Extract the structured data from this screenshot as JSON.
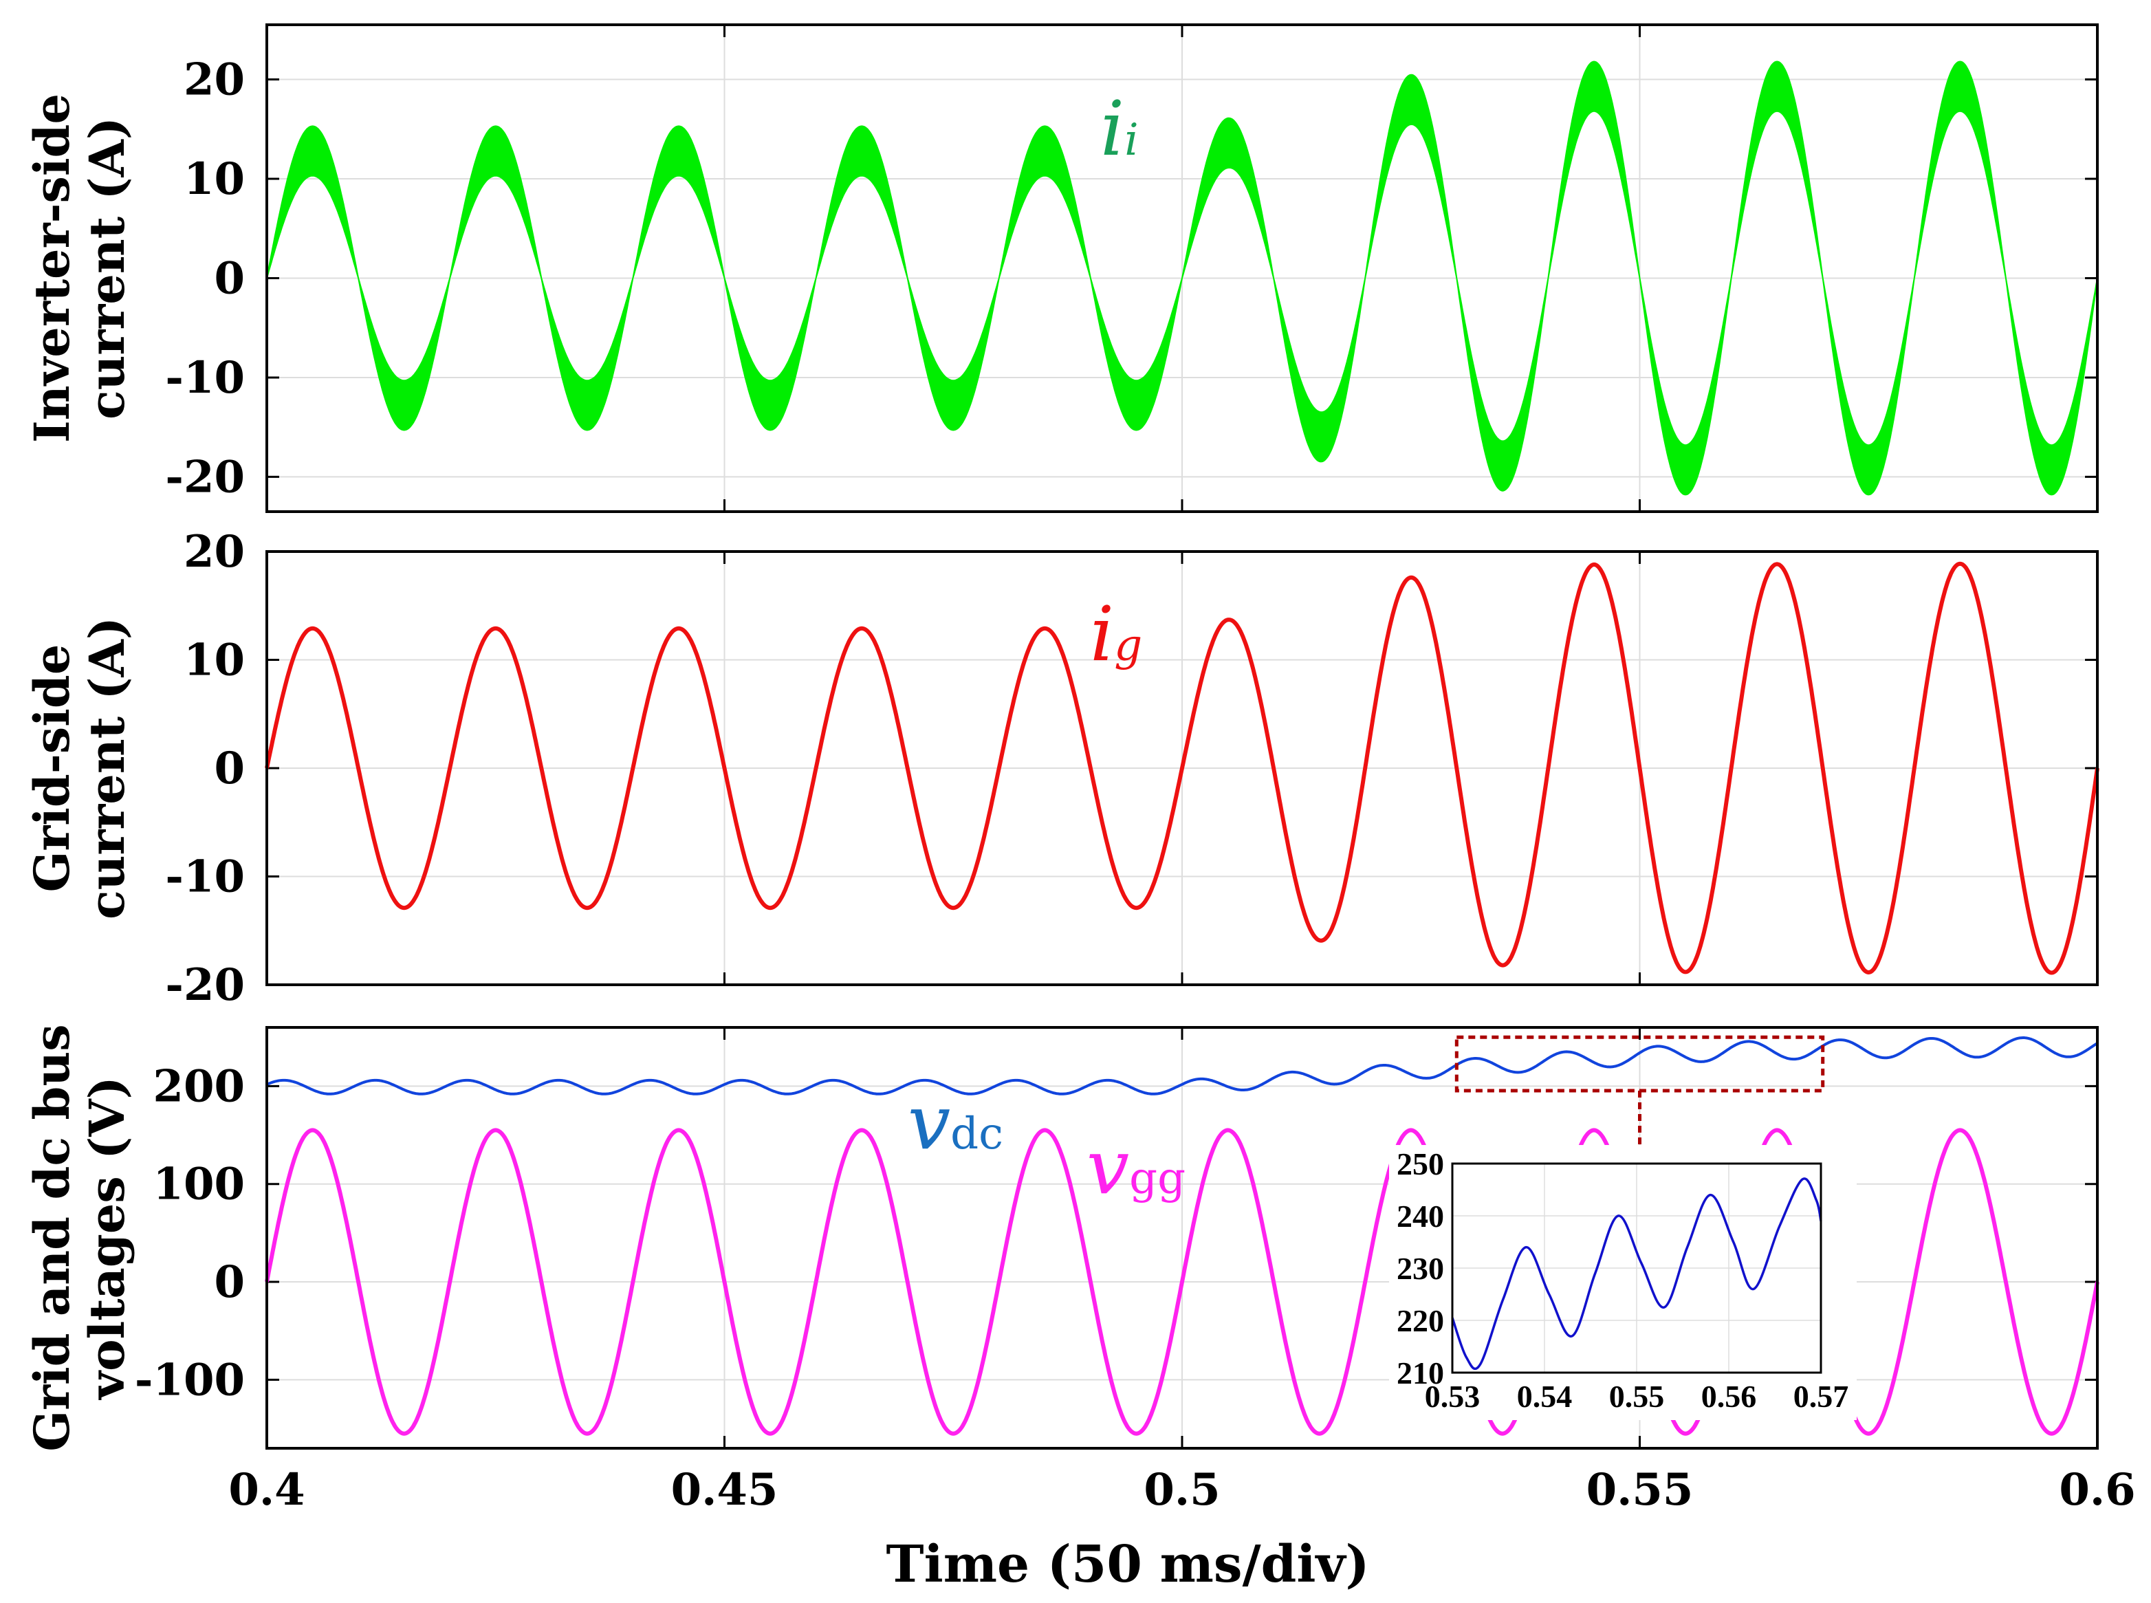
{
  "chart_data": [
    {
      "type": "line",
      "id": "inverter-current",
      "ylabel_lines": [
        "Inverter-side",
        "current (A)"
      ],
      "x_range": [
        0.4,
        0.6
      ],
      "ylim": [
        -23.5,
        25.5
      ],
      "yticks": [
        20,
        10,
        0,
        -10,
        -20
      ],
      "ytick_labels": [
        "20",
        "10",
        "0",
        "-10",
        "-20"
      ],
      "xticks": [
        0.4,
        0.45,
        0.5,
        0.55,
        0.6
      ],
      "grid": true,
      "frequency_hz": 50,
      "ripple_band_A": 2.5,
      "series": [
        {
          "name": "i_i",
          "label_main": "i",
          "label_sub": "i",
          "color": "#00ee00",
          "amplitude_envelope": [
            [
              0.4,
              12.8
            ],
            [
              0.5,
              12.8
            ],
            [
              0.51,
              14.4
            ],
            [
              0.52,
              17.5
            ],
            [
              0.535,
              18.9
            ],
            [
              0.545,
              19.3
            ],
            [
              0.6,
              19.3
            ]
          ]
        }
      ]
    },
    {
      "type": "line",
      "id": "grid-current",
      "ylabel_lines": [
        "Grid-side",
        "current (A)"
      ],
      "x_range": [
        0.4,
        0.6
      ],
      "ylim": [
        -20,
        20
      ],
      "yticks": [
        20,
        10,
        0,
        -10,
        -20
      ],
      "ytick_labels": [
        "20",
        "10",
        "0",
        "-10",
        "-20"
      ],
      "xticks": [
        0.4,
        0.45,
        0.5,
        0.55,
        0.6
      ],
      "grid": true,
      "frequency_hz": 50,
      "series": [
        {
          "name": "i_g",
          "label_main": "i",
          "label_sub": "g",
          "color": "#ee1111",
          "amplitude_envelope": [
            [
              0.4,
              12.9
            ],
            [
              0.5,
              12.9
            ],
            [
              0.51,
              14.5
            ],
            [
              0.52,
              17.3
            ],
            [
              0.535,
              18.2
            ],
            [
              0.545,
              18.8
            ],
            [
              0.6,
              18.9
            ]
          ]
        }
      ]
    },
    {
      "type": "line",
      "id": "voltages",
      "ylabel_lines": [
        "Grid and  dc bus",
        "voltages (V)"
      ],
      "x_range": [
        0.4,
        0.6
      ],
      "ylim": [
        -170,
        260
      ],
      "yticks": [
        200,
        100,
        0,
        -100
      ],
      "ytick_labels": [
        "200",
        "100",
        "0",
        "-100"
      ],
      "xticks": [
        0.4,
        0.45,
        0.5,
        0.55,
        0.6
      ],
      "xtick_labels": [
        "0.4",
        "0.45",
        "0.5",
        "0.55",
        "0.6"
      ],
      "xlabel": "Time (50 ms/div)",
      "grid": true,
      "series": [
        {
          "name": "v_gg",
          "label_main": "v",
          "label_sub": "gg",
          "color": "#ff22ee",
          "amplitude": 155,
          "frequency_hz": 50
        },
        {
          "name": "v_dc",
          "label_main": "v",
          "label_sub": "dc",
          "color": "#1144dd",
          "mean_envelope": [
            [
              0.4,
              199
            ],
            [
              0.5,
              199
            ],
            [
              0.52,
              212
            ],
            [
              0.54,
              225
            ],
            [
              0.56,
              236
            ],
            [
              0.58,
              239
            ],
            [
              0.6,
              240
            ]
          ],
          "ripple_envelope": [
            [
              0.4,
              7
            ],
            [
              0.5,
              7
            ],
            [
              0.52,
              8
            ],
            [
              0.54,
              9
            ],
            [
              0.6,
              10
            ]
          ],
          "ripple_frequency_hz": 100
        }
      ],
      "zoom_region": {
        "x": [
          0.53,
          0.57
        ],
        "y": [
          208,
          250
        ]
      }
    },
    {
      "type": "line",
      "id": "vdc-zoom-inset",
      "x_range": [
        0.53,
        0.57
      ],
      "ylim": [
        210,
        250
      ],
      "yticks": [
        250,
        240,
        230,
        220,
        210
      ],
      "ytick_labels": [
        "250",
        "240",
        "230",
        "220",
        "210"
      ],
      "xticks": [
        0.53,
        0.54,
        0.55,
        0.56,
        0.57
      ],
      "xtick_labels": [
        "0.53",
        "0.54",
        "0.55",
        "0.56",
        "0.57"
      ],
      "grid": true,
      "series": [
        {
          "name": "v_dc zoom",
          "color": "#1111cc",
          "points": [
            [
              0.53,
              220.5
            ],
            [
              0.5315,
              213
            ],
            [
              0.533,
              211.5
            ],
            [
              0.5355,
              224
            ],
            [
              0.538,
              234
            ],
            [
              0.5405,
              225
            ],
            [
              0.543,
              217
            ],
            [
              0.5455,
              229
            ],
            [
              0.548,
              240
            ],
            [
              0.5505,
              231
            ],
            [
              0.553,
              222.5
            ],
            [
              0.5555,
              234
            ],
            [
              0.558,
              244
            ],
            [
              0.5605,
              235
            ],
            [
              0.5627,
              226
            ],
            [
              0.5655,
              238
            ],
            [
              0.568,
              247
            ],
            [
              0.5695,
              243
            ],
            [
              0.57,
              239
            ]
          ]
        }
      ]
    }
  ]
}
